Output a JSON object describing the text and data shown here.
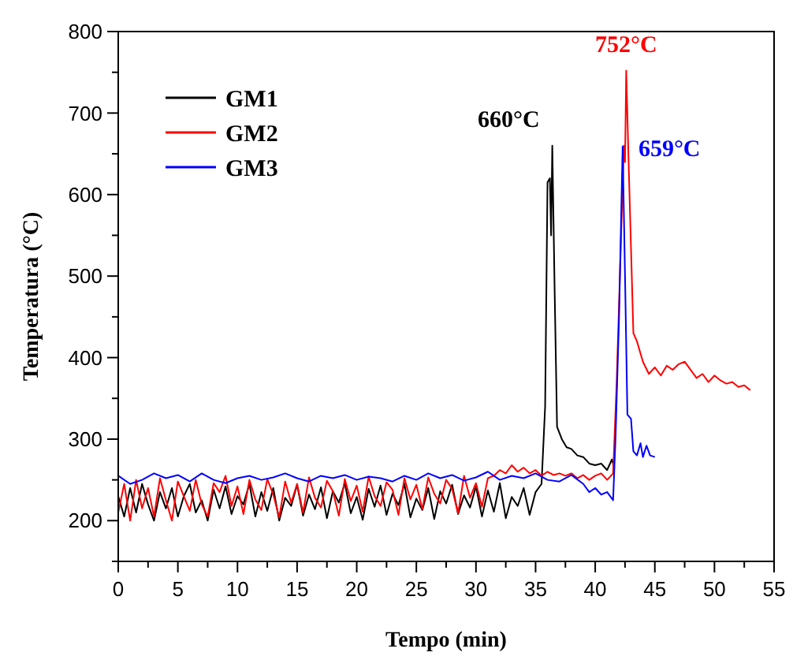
{
  "chart_data": {
    "type": "line",
    "xlabel": "Tempo (min)",
    "ylabel": "Temperatura (°C)",
    "xlim": [
      0,
      55
    ],
    "ylim": [
      150,
      800
    ],
    "xticks": [
      0,
      {
        "value": 2.5,
        "label": null
      },
      5,
      {
        "value": 7.5,
        "label": null
      },
      10,
      {
        "value": 12.5,
        "label": null
      },
      15,
      {
        "value": 17.5,
        "label": null
      },
      20,
      {
        "value": 22.5,
        "label": null
      },
      25,
      {
        "value": 27.5,
        "label": null
      },
      30,
      {
        "value": 32.5,
        "label": null
      },
      35,
      {
        "value": 37.5,
        "label": null
      },
      40,
      {
        "value": 42.5,
        "label": null
      },
      45,
      {
        "value": 47.5,
        "label": null
      },
      50,
      {
        "value": 52.5,
        "label": null
      },
      55
    ],
    "yticks": [
      {
        "value": 150,
        "label": null
      },
      200,
      {
        "value": 250,
        "label": null
      },
      300,
      {
        "value": 350,
        "label": null
      },
      400,
      {
        "value": 450,
        "label": null
      },
      500,
      {
        "value": 550,
        "label": null
      },
      600,
      {
        "value": 650,
        "label": null
      },
      700,
      {
        "value": 750,
        "label": null
      },
      800
    ],
    "legend": "top left",
    "grid": false,
    "marker": "none",
    "line_style": "solid",
    "series": [
      {
        "name": "GM1",
        "color": "#000000",
        "x": [
          0,
          0.5,
          1,
          1.5,
          2,
          2.5,
          3,
          3.5,
          4,
          4.5,
          5,
          5.5,
          6,
          6.5,
          7,
          7.5,
          8,
          8.5,
          9,
          9.5,
          10,
          10.5,
          11,
          11.5,
          12,
          12.5,
          13,
          13.5,
          14,
          14.5,
          15,
          15.5,
          16,
          16.5,
          17,
          17.5,
          18,
          18.5,
          19,
          19.5,
          20,
          20.5,
          21,
          21.5,
          22,
          22.5,
          23,
          23.5,
          24,
          24.5,
          25,
          25.5,
          26,
          26.5,
          27,
          27.5,
          28,
          28.5,
          29,
          29.5,
          30,
          30.5,
          31,
          31.5,
          32,
          32.5,
          33,
          33.5,
          34,
          34.5,
          35,
          35.5,
          35.8,
          36,
          36.2,
          36.3,
          36.4,
          36.6,
          36.8,
          37.2,
          37.6,
          38,
          38.5,
          39,
          39.5,
          40,
          40.5,
          41,
          41.4,
          41.6
        ],
        "values": [
          230,
          205,
          240,
          210,
          245,
          220,
          200,
          235,
          215,
          240,
          205,
          230,
          245,
          210,
          225,
          200,
          238,
          215,
          242,
          208,
          230,
          220,
          245,
          205,
          235,
          212,
          240,
          200,
          228,
          218,
          244,
          206,
          232,
          214,
          241,
          203,
          236,
          222,
          246,
          209,
          229,
          201,
          239,
          217,
          243,
          207,
          233,
          219,
          245,
          204,
          227,
          213,
          240,
          202,
          236,
          221,
          244,
          208,
          231,
          216,
          242,
          205,
          237,
          211,
          246,
          203,
          229,
          218,
          240,
          207,
          235,
          245,
          340,
          615,
          620,
          550,
          660,
          480,
          315,
          300,
          290,
          288,
          280,
          278,
          270,
          268,
          270,
          262,
          275,
          265
        ]
      },
      {
        "name": "GM2",
        "color": "#ff0000",
        "x": [
          0,
          0.5,
          1,
          1.5,
          2,
          2.5,
          3,
          3.5,
          4,
          4.5,
          5,
          5.5,
          6,
          6.5,
          7,
          7.5,
          8,
          8.5,
          9,
          9.5,
          10,
          10.5,
          11,
          11.5,
          12,
          12.5,
          13,
          13.5,
          14,
          14.5,
          15,
          15.5,
          16,
          16.5,
          17,
          17.5,
          18,
          18.5,
          19,
          19.5,
          20,
          20.5,
          21,
          21.5,
          22,
          22.5,
          23,
          23.5,
          24,
          24.5,
          25,
          25.5,
          26,
          26.5,
          27,
          27.5,
          28,
          28.5,
          29,
          29.5,
          30,
          30.5,
          31,
          31.5,
          32,
          32.5,
          33,
          33.5,
          34,
          34.5,
          35,
          35.5,
          36,
          36.5,
          37,
          37.5,
          38,
          38.5,
          39,
          39.5,
          40,
          40.5,
          41,
          41.5,
          41.8,
          42.4,
          42.5,
          42.6,
          42.8,
          43.2,
          43.5,
          44,
          44.5,
          45,
          45.5,
          46,
          46.5,
          47,
          47.5,
          48,
          48.5,
          49,
          49.5,
          50,
          50.5,
          51,
          51.5,
          52,
          52.5,
          53
        ],
        "values": [
          210,
          245,
          200,
          250,
          215,
          240,
          205,
          252,
          225,
          200,
          248,
          230,
          212,
          250,
          220,
          205,
          246,
          235,
          255,
          218,
          242,
          208,
          250,
          226,
          213,
          251,
          232,
          204,
          248,
          222,
          245,
          210,
          253,
          228,
          216,
          249,
          236,
          206,
          251,
          224,
          243,
          211,
          254,
          230,
          218,
          247,
          238,
          207,
          252,
          226,
          244,
          214,
          253,
          233,
          221,
          250,
          239,
          209,
          255,
          228,
          246,
          217,
          252,
          255,
          262,
          258,
          268,
          260,
          265,
          258,
          262,
          255,
          260,
          256,
          258,
          255,
          258,
          252,
          256,
          250,
          255,
          258,
          250,
          258,
          370,
          660,
          640,
          752,
          640,
          430,
          420,
          395,
          380,
          388,
          378,
          390,
          385,
          392,
          395,
          385,
          375,
          380,
          370,
          378,
          372,
          368,
          370,
          364,
          366,
          360
        ]
      },
      {
        "name": "GM3",
        "color": "#0000ff",
        "x": [
          0,
          1,
          2,
          3,
          4,
          5,
          6,
          7,
          8,
          9,
          10,
          11,
          12,
          13,
          14,
          15,
          16,
          17,
          18,
          19,
          20,
          21,
          22,
          23,
          24,
          25,
          26,
          27,
          28,
          29,
          30,
          31,
          32,
          33,
          34,
          35,
          36,
          37,
          38,
          39,
          39.5,
          40,
          40.5,
          41,
          41.5,
          41.7,
          42,
          42.3,
          42.5,
          42.7,
          43,
          43.2,
          43.5,
          43.8,
          44,
          44.3,
          44.6,
          45
        ],
        "values": [
          255,
          245,
          250,
          258,
          252,
          256,
          248,
          258,
          250,
          246,
          252,
          255,
          250,
          253,
          258,
          252,
          248,
          255,
          252,
          256,
          250,
          254,
          252,
          248,
          255,
          250,
          258,
          252,
          256,
          249,
          253,
          260,
          250,
          255,
          252,
          258,
          250,
          248,
          256,
          245,
          235,
          240,
          232,
          235,
          225,
          300,
          450,
          659,
          500,
          330,
          325,
          285,
          280,
          295,
          278,
          292,
          280,
          278
        ]
      }
    ],
    "annotations": [
      {
        "text": "660°C",
        "x": 36.4,
        "y": 660
      },
      {
        "text": "752°C",
        "x": 42.6,
        "y": 752
      },
      {
        "text": "659°C",
        "x": 42.3,
        "y": 659
      }
    ]
  }
}
